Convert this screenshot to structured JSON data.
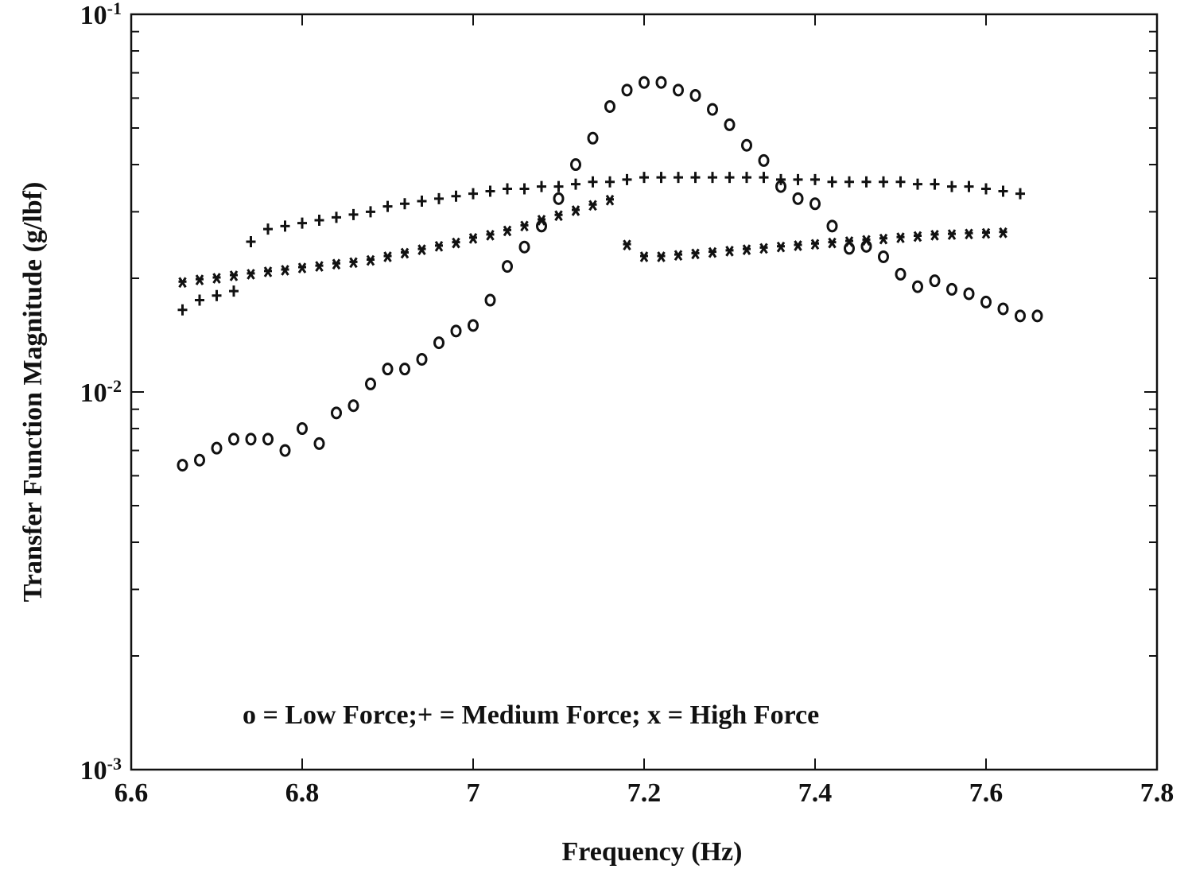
{
  "chart_data": {
    "type": "scatter",
    "xlabel": "Frequency (Hz)",
    "ylabel": "Transfer Function Magnitude (g/lbf)",
    "xlim": [
      6.6,
      7.8
    ],
    "ylim": [
      0.001,
      0.1
    ],
    "yscale": "log",
    "grid": false,
    "x_ticks": [
      6.6,
      6.8,
      7.0,
      7.2,
      7.4,
      7.6,
      7.8
    ],
    "x_tick_labels": [
      "6.6",
      "6.8",
      "7",
      "7.2",
      "7.4",
      "7.6",
      "7.8"
    ],
    "y_ticks": [
      0.1,
      0.01,
      0.001
    ],
    "y_tick_labels": [
      {
        "base": "10",
        "exp": "-1"
      },
      {
        "base": "10",
        "exp": "-2"
      },
      {
        "base": "10",
        "exp": "-3"
      }
    ],
    "legend": {
      "text": "o = Low Force;+ = Medium Force;  x = High Force",
      "placement": "bottom-left"
    },
    "series": [
      {
        "marker": "o",
        "x": [
          6.66,
          6.68,
          6.7,
          6.72,
          6.74,
          6.76,
          6.78,
          6.8,
          6.82,
          6.84,
          6.86,
          6.88,
          6.9,
          6.92,
          6.94,
          6.96,
          6.98,
          7.0,
          7.02,
          7.04,
          7.06,
          7.08,
          7.1,
          7.12,
          7.14,
          7.16,
          7.18,
          7.2,
          7.22,
          7.24,
          7.26,
          7.28,
          7.3,
          7.32,
          7.34,
          7.36,
          7.38,
          7.4,
          7.42,
          7.44,
          7.46,
          7.48,
          7.5,
          7.52,
          7.54,
          7.56,
          7.58,
          7.6,
          7.62,
          7.64,
          7.66
        ],
        "y": [
          0.0064,
          0.0066,
          0.0071,
          0.0075,
          0.0075,
          0.0075,
          0.007,
          0.008,
          0.0073,
          0.0088,
          0.0092,
          0.0105,
          0.0115,
          0.0115,
          0.0122,
          0.0135,
          0.0145,
          0.015,
          0.0175,
          0.0215,
          0.0242,
          0.0275,
          0.0325,
          0.04,
          0.047,
          0.057,
          0.063,
          0.066,
          0.066,
          0.063,
          0.061,
          0.056,
          0.051,
          0.045,
          0.041,
          0.035,
          0.0325,
          0.0315,
          0.0275,
          0.024,
          0.0243,
          0.0228,
          0.0205,
          0.019,
          0.0197,
          0.0187,
          0.0182,
          0.0173,
          0.0166,
          0.0159,
          0.0159
        ]
      },
      {
        "marker": "+",
        "x": [
          6.66,
          6.68,
          6.7,
          6.72,
          6.74,
          6.76,
          6.78,
          6.8,
          6.82,
          6.84,
          6.86,
          6.88,
          6.9,
          6.92,
          6.94,
          6.96,
          6.98,
          7.0,
          7.02,
          7.04,
          7.06,
          7.08,
          7.1,
          7.12,
          7.14,
          7.16,
          7.18,
          7.2,
          7.22,
          7.24,
          7.26,
          7.28,
          7.3,
          7.32,
          7.34,
          7.36,
          7.38,
          7.4,
          7.42,
          7.44,
          7.46,
          7.48,
          7.5,
          7.52,
          7.54,
          7.56,
          7.58,
          7.6,
          7.62,
          7.64
        ],
        "y": [
          0.0165,
          0.0175,
          0.018,
          0.0185,
          0.025,
          0.027,
          0.0275,
          0.028,
          0.0285,
          0.029,
          0.0295,
          0.03,
          0.031,
          0.0315,
          0.032,
          0.0325,
          0.033,
          0.0335,
          0.034,
          0.0345,
          0.0345,
          0.035,
          0.035,
          0.0355,
          0.036,
          0.036,
          0.0365,
          0.037,
          0.037,
          0.037,
          0.037,
          0.037,
          0.037,
          0.037,
          0.037,
          0.0365,
          0.0365,
          0.0365,
          0.036,
          0.036,
          0.036,
          0.036,
          0.036,
          0.0355,
          0.0355,
          0.035,
          0.035,
          0.0345,
          0.034,
          0.0335
        ]
      },
      {
        "marker": "x",
        "x": [
          6.66,
          6.68,
          6.7,
          6.72,
          6.74,
          6.76,
          6.78,
          6.8,
          6.82,
          6.84,
          6.86,
          6.88,
          6.9,
          6.92,
          6.94,
          6.96,
          6.98,
          7.0,
          7.02,
          7.04,
          7.06,
          7.08,
          7.1,
          7.12,
          7.14,
          7.16,
          7.18,
          7.2,
          7.22,
          7.24,
          7.26,
          7.28,
          7.3,
          7.32,
          7.34,
          7.36,
          7.38,
          7.4,
          7.42,
          7.44,
          7.46,
          7.48,
          7.5,
          7.52,
          7.54,
          7.56,
          7.58,
          7.6,
          7.62
        ],
        "y": [
          0.0195,
          0.0198,
          0.02,
          0.0203,
          0.0205,
          0.0208,
          0.021,
          0.0213,
          0.0215,
          0.0218,
          0.022,
          0.0223,
          0.0228,
          0.0233,
          0.0238,
          0.0243,
          0.0248,
          0.0255,
          0.026,
          0.0267,
          0.0275,
          0.0285,
          0.0293,
          0.0302,
          0.0312,
          0.0322,
          0.0245,
          0.0228,
          0.0228,
          0.023,
          0.0232,
          0.0234,
          0.0236,
          0.0238,
          0.024,
          0.0242,
          0.0244,
          0.0246,
          0.0248,
          0.025,
          0.0252,
          0.0254,
          0.0256,
          0.0258,
          0.026,
          0.0261,
          0.0262,
          0.0263,
          0.0264
        ]
      }
    ]
  }
}
